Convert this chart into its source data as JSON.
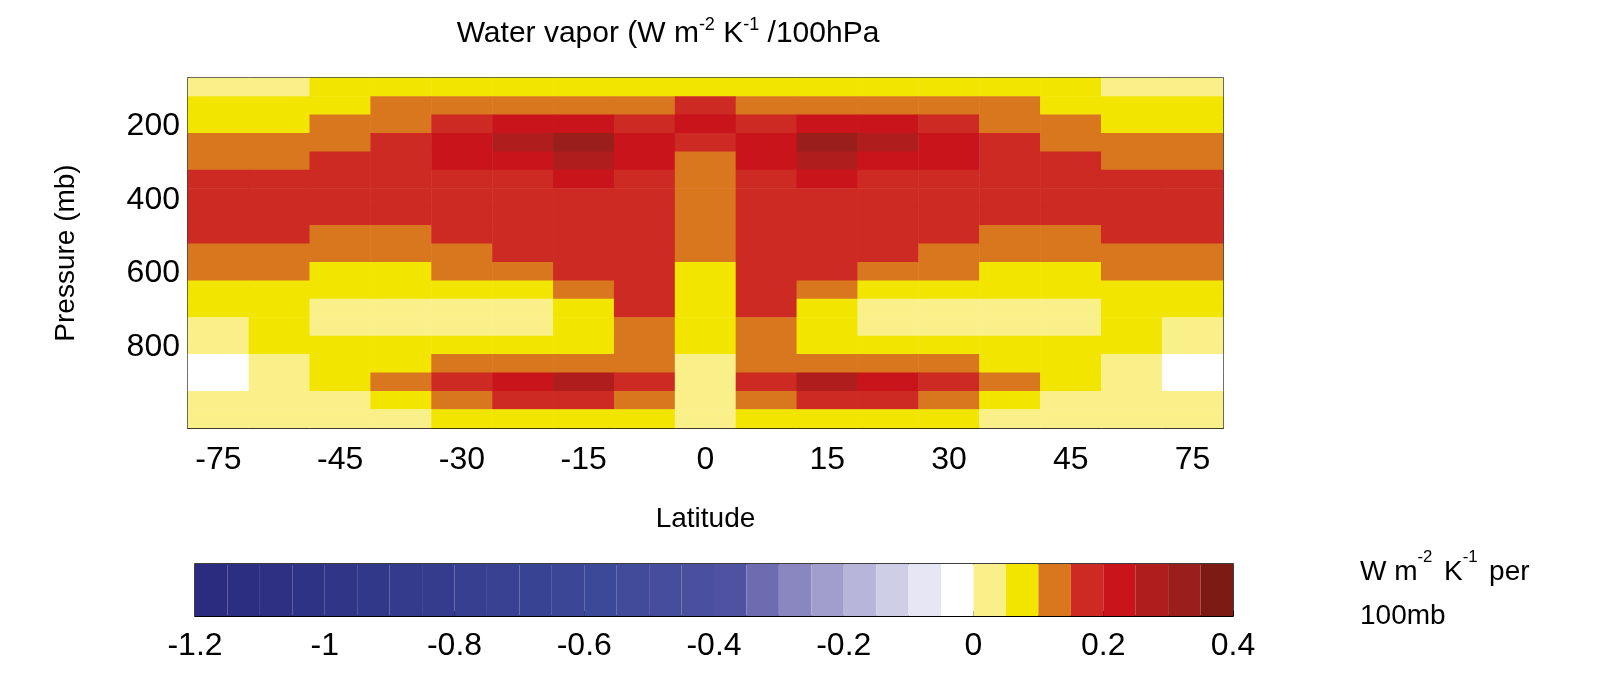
{
  "chart_data": {
    "type": "heatmap",
    "title": "Water vapor (W m$^{-2}$ K$^{-1}$ /100hPa",
    "xlabel": "Latitude",
    "ylabel": "Pressure (mb)",
    "clabel": "W m$^{-2}$ K$^{-1}$ per 100mb",
    "categories": [
      "-75",
      null,
      "-45",
      null,
      "-30",
      null,
      "-15",
      null,
      "0",
      null,
      "15",
      null,
      "30",
      null,
      "45",
      null,
      "75"
    ],
    "y_categories": [
      null,
      null,
      "200",
      null,
      null,
      null,
      "400",
      null,
      null,
      null,
      "600",
      null,
      null,
      null,
      "800",
      null,
      null,
      null,
      null
    ],
    "cells": [
      [
        0.025,
        0.025,
        0.075,
        0.075,
        0.075,
        0.075,
        0.075,
        0.075,
        0.075,
        0.075,
        0.075,
        0.075,
        0.075,
        0.075,
        0.075,
        0.025,
        0.025
      ],
      [
        0.075,
        0.075,
        0.075,
        0.125,
        0.125,
        0.125,
        0.125,
        0.125,
        0.175,
        0.125,
        0.125,
        0.125,
        0.125,
        0.125,
        0.075,
        0.075,
        0.075
      ],
      [
        0.075,
        0.075,
        0.125,
        0.125,
        0.175,
        0.225,
        0.225,
        0.175,
        0.225,
        0.175,
        0.225,
        0.225,
        0.175,
        0.125,
        0.125,
        0.075,
        0.075
      ],
      [
        0.125,
        0.125,
        0.125,
        0.175,
        0.225,
        0.275,
        0.325,
        0.225,
        0.175,
        0.225,
        0.325,
        0.275,
        0.225,
        0.175,
        0.125,
        0.125,
        0.125
      ],
      [
        0.125,
        0.125,
        0.175,
        0.175,
        0.225,
        0.225,
        0.275,
        0.225,
        0.125,
        0.225,
        0.275,
        0.225,
        0.225,
        0.175,
        0.175,
        0.125,
        0.125
      ],
      [
        0.175,
        0.175,
        0.175,
        0.175,
        0.175,
        0.175,
        0.225,
        0.175,
        0.125,
        0.175,
        0.225,
        0.175,
        0.175,
        0.175,
        0.175,
        0.175,
        0.175
      ],
      [
        0.175,
        0.175,
        0.175,
        0.175,
        0.175,
        0.175,
        0.175,
        0.175,
        0.125,
        0.175,
        0.175,
        0.175,
        0.175,
        0.175,
        0.175,
        0.175,
        0.175
      ],
      [
        0.175,
        0.175,
        0.175,
        0.175,
        0.175,
        0.175,
        0.175,
        0.175,
        0.125,
        0.175,
        0.175,
        0.175,
        0.175,
        0.175,
        0.175,
        0.175,
        0.175
      ],
      [
        0.175,
        0.175,
        0.125,
        0.125,
        0.175,
        0.175,
        0.175,
        0.175,
        0.125,
        0.175,
        0.175,
        0.175,
        0.175,
        0.125,
        0.125,
        0.175,
        0.175
      ],
      [
        0.125,
        0.125,
        0.125,
        0.125,
        0.125,
        0.175,
        0.175,
        0.175,
        0.125,
        0.175,
        0.175,
        0.175,
        0.125,
        0.125,
        0.125,
        0.125,
        0.125
      ],
      [
        0.125,
        0.125,
        0.075,
        0.075,
        0.125,
        0.125,
        0.175,
        0.175,
        0.075,
        0.175,
        0.175,
        0.125,
        0.125,
        0.075,
        0.075,
        0.125,
        0.125
      ],
      [
        0.075,
        0.075,
        0.075,
        0.075,
        0.075,
        0.075,
        0.125,
        0.175,
        0.075,
        0.175,
        0.125,
        0.075,
        0.075,
        0.075,
        0.075,
        0.075,
        0.075
      ],
      [
        0.075,
        0.075,
        0.025,
        0.025,
        0.025,
        0.025,
        0.075,
        0.175,
        0.075,
        0.175,
        0.075,
        0.025,
        0.025,
        0.025,
        0.025,
        0.075,
        0.075
      ],
      [
        0.025,
        0.075,
        0.025,
        0.025,
        0.025,
        0.025,
        0.075,
        0.125,
        0.075,
        0.125,
        0.075,
        0.025,
        0.025,
        0.025,
        0.025,
        0.075,
        0.025
      ],
      [
        0.025,
        0.075,
        0.075,
        0.075,
        0.075,
        0.075,
        0.075,
        0.125,
        0.075,
        0.125,
        0.075,
        0.075,
        0.075,
        0.075,
        0.075,
        0.075,
        0.025
      ],
      [
        -0.025,
        0.025,
        0.075,
        0.075,
        0.125,
        0.125,
        0.125,
        0.125,
        0.025,
        0.125,
        0.125,
        0.125,
        0.125,
        0.075,
        0.075,
        0.025,
        -0.025
      ],
      [
        -0.025,
        0.025,
        0.075,
        0.125,
        0.175,
        0.225,
        0.275,
        0.175,
        0.025,
        0.175,
        0.275,
        0.225,
        0.175,
        0.125,
        0.075,
        0.025,
        -0.025
      ],
      [
        0.025,
        0.025,
        0.025,
        0.075,
        0.125,
        0.175,
        0.175,
        0.125,
        0.025,
        0.125,
        0.175,
        0.175,
        0.125,
        0.075,
        0.025,
        0.025,
        0.025
      ],
      [
        0.025,
        0.025,
        0.025,
        0.025,
        0.075,
        0.075,
        0.075,
        0.075,
        0.025,
        0.075,
        0.075,
        0.075,
        0.075,
        0.025,
        0.025,
        0.025,
        0.025
      ]
    ],
    "clim": [
      -1.2,
      0.4
    ],
    "cticks": [
      -1.2,
      -1,
      -0.8,
      -0.6,
      -0.4,
      -0.2,
      0,
      0.2,
      0.4
    ]
  }
}
